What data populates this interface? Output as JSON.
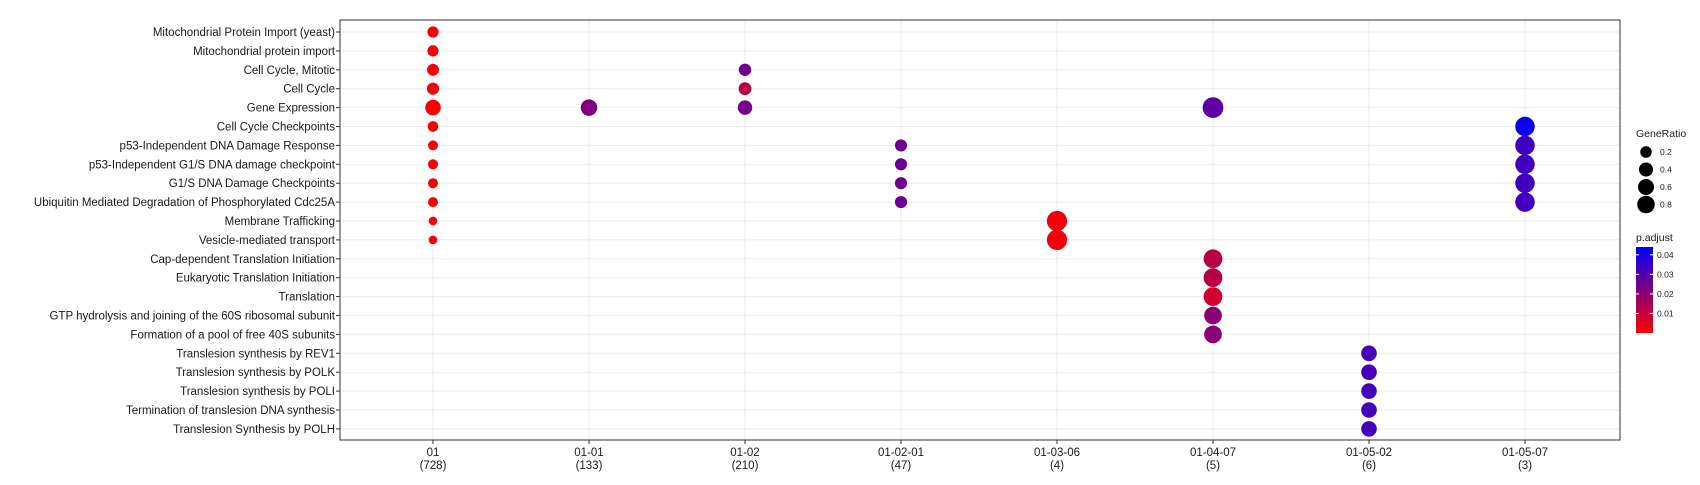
{
  "chart_data": {
    "type": "scatter",
    "clusters": [
      {
        "name": "01",
        "count": "(728)"
      },
      {
        "name": "01-01",
        "count": "(133)"
      },
      {
        "name": "01-02",
        "count": "(210)"
      },
      {
        "name": "01-02-01",
        "count": "(47)"
      },
      {
        "name": "01-03-06",
        "count": "(4)"
      },
      {
        "name": "01-04-07",
        "count": "(5)"
      },
      {
        "name": "01-05-02",
        "count": "(6)"
      },
      {
        "name": "01-05-07",
        "count": "(3)"
      }
    ],
    "terms": [
      "Mitochondrial Protein Import (yeast)",
      "Mitochondrial protein import",
      "Cell Cycle, Mitotic",
      "Cell Cycle",
      "Gene Expression",
      "Cell Cycle Checkpoints",
      "p53-Independent DNA Damage Response",
      "p53-Independent G1/S DNA damage checkpoint",
      "G1/S DNA Damage Checkpoints",
      "Ubiquitin Mediated Degradation of Phosphorylated Cdc25A",
      "Membrane Trafficking",
      "Vesicle-mediated transport",
      "Cap-dependent Translation Initiation",
      "Eukaryotic Translation Initiation",
      "Translation",
      "GTP hydrolysis and joining of the 60S ribosomal subunit",
      "Formation of a pool of free 40S subunits",
      "Translesion synthesis by REV1",
      "Translesion synthesis by POLK",
      "Translesion synthesis by POLI",
      "Termination of translesion DNA synthesis",
      "Translesion Synthesis by POLH"
    ],
    "points": [
      {
        "cluster": "01",
        "term": "Mitochondrial Protein Import (yeast)",
        "gene_ratio": 0.09,
        "p_adjust": 0.001
      },
      {
        "cluster": "01",
        "term": "Mitochondrial protein import",
        "gene_ratio": 0.09,
        "p_adjust": 0.001
      },
      {
        "cluster": "01",
        "term": "Cell Cycle, Mitotic",
        "gene_ratio": 0.12,
        "p_adjust": 0.001
      },
      {
        "cluster": "01",
        "term": "Cell Cycle",
        "gene_ratio": 0.13,
        "p_adjust": 0.001
      },
      {
        "cluster": "01",
        "term": "Gene Expression",
        "gene_ratio": 0.33,
        "p_adjust": 0.001
      },
      {
        "cluster": "01",
        "term": "Cell Cycle Checkpoints",
        "gene_ratio": 0.07,
        "p_adjust": 0.001
      },
      {
        "cluster": "01",
        "term": "p53-Independent DNA Damage Response",
        "gene_ratio": 0.05,
        "p_adjust": 0.001
      },
      {
        "cluster": "01",
        "term": "p53-Independent G1/S DNA damage checkpoint",
        "gene_ratio": 0.05,
        "p_adjust": 0.001
      },
      {
        "cluster": "01",
        "term": "G1/S DNA Damage Checkpoints",
        "gene_ratio": 0.05,
        "p_adjust": 0.001
      },
      {
        "cluster": "01",
        "term": "Ubiquitin Mediated Degradation of Phosphorylated Cdc25A",
        "gene_ratio": 0.05,
        "p_adjust": 0.001
      },
      {
        "cluster": "01",
        "term": "Membrane Trafficking",
        "gene_ratio": 0.02,
        "p_adjust": 0.001
      },
      {
        "cluster": "01",
        "term": "Vesicle-mediated transport",
        "gene_ratio": 0.02,
        "p_adjust": 0.001
      },
      {
        "cluster": "01-01",
        "term": "Gene Expression",
        "gene_ratio": 0.4,
        "p_adjust": 0.022
      },
      {
        "cluster": "01-02",
        "term": "Cell Cycle, Mitotic",
        "gene_ratio": 0.14,
        "p_adjust": 0.025
      },
      {
        "cluster": "01-02",
        "term": "Cell Cycle",
        "gene_ratio": 0.16,
        "p_adjust": 0.012
      },
      {
        "cluster": "01-02",
        "term": "Gene Expression",
        "gene_ratio": 0.25,
        "p_adjust": 0.024
      },
      {
        "cluster": "01-02-01",
        "term": "p53-Independent DNA Damage Response",
        "gene_ratio": 0.13,
        "p_adjust": 0.025
      },
      {
        "cluster": "01-02-01",
        "term": "p53-Independent G1/S DNA damage checkpoint",
        "gene_ratio": 0.13,
        "p_adjust": 0.025
      },
      {
        "cluster": "01-02-01",
        "term": "G1/S DNA Damage Checkpoints",
        "gene_ratio": 0.13,
        "p_adjust": 0.025
      },
      {
        "cluster": "01-02-01",
        "term": "Ubiquitin Mediated Degradation of Phosphorylated Cdc25A",
        "gene_ratio": 0.13,
        "p_adjust": 0.025
      },
      {
        "cluster": "01-03-06",
        "term": "Membrane Trafficking",
        "gene_ratio": 0.75,
        "p_adjust": 0.002
      },
      {
        "cluster": "01-03-06",
        "term": "Vesicle-mediated transport",
        "gene_ratio": 0.75,
        "p_adjust": 0.002
      },
      {
        "cluster": "01-04-07",
        "term": "Gene Expression",
        "gene_ratio": 0.8,
        "p_adjust": 0.028
      },
      {
        "cluster": "01-04-07",
        "term": "Cap-dependent Translation Initiation",
        "gene_ratio": 0.6,
        "p_adjust": 0.012
      },
      {
        "cluster": "01-04-07",
        "term": "Eukaryotic Translation Initiation",
        "gene_ratio": 0.6,
        "p_adjust": 0.012
      },
      {
        "cluster": "01-04-07",
        "term": "Translation",
        "gene_ratio": 0.6,
        "p_adjust": 0.008
      },
      {
        "cluster": "01-04-07",
        "term": "GTP hydrolysis and joining of the 60S ribosomal subunit",
        "gene_ratio": 0.5,
        "p_adjust": 0.02
      },
      {
        "cluster": "01-04-07",
        "term": "Formation of a pool of free 40S subunits",
        "gene_ratio": 0.5,
        "p_adjust": 0.02
      },
      {
        "cluster": "01-05-02",
        "term": "Translesion synthesis by REV1",
        "gene_ratio": 0.33,
        "p_adjust": 0.032
      },
      {
        "cluster": "01-05-02",
        "term": "Translesion synthesis by POLK",
        "gene_ratio": 0.33,
        "p_adjust": 0.032
      },
      {
        "cluster": "01-05-02",
        "term": "Translesion synthesis by POLI",
        "gene_ratio": 0.33,
        "p_adjust": 0.032
      },
      {
        "cluster": "01-05-02",
        "term": "Termination of translesion DNA synthesis",
        "gene_ratio": 0.33,
        "p_adjust": 0.032
      },
      {
        "cluster": "01-05-02",
        "term": "Translesion Synthesis by POLH",
        "gene_ratio": 0.33,
        "p_adjust": 0.032
      },
      {
        "cluster": "01-05-07",
        "term": "Cell Cycle Checkpoints",
        "gene_ratio": 0.67,
        "p_adjust": 0.042
      },
      {
        "cluster": "01-05-07",
        "term": "p53-Independent DNA Damage Response",
        "gene_ratio": 0.67,
        "p_adjust": 0.033
      },
      {
        "cluster": "01-05-07",
        "term": "p53-Independent G1/S DNA damage checkpoint",
        "gene_ratio": 0.67,
        "p_adjust": 0.033
      },
      {
        "cluster": "01-05-07",
        "term": "G1/S DNA Damage Checkpoints",
        "gene_ratio": 0.67,
        "p_adjust": 0.033
      },
      {
        "cluster": "01-05-07",
        "term": "Ubiquitin Mediated Degradation of Phosphorylated Cdc25A",
        "gene_ratio": 0.67,
        "p_adjust": 0.033
      }
    ],
    "size_legend": {
      "title": "GeneRatio",
      "breaks": [
        0.2,
        0.4,
        0.6,
        0.8
      ],
      "labels": [
        "0.2",
        "0.4",
        "0.6",
        "0.8"
      ]
    },
    "color_legend": {
      "title": "p.adjust",
      "range": [
        0.0,
        0.044
      ],
      "breaks": [
        0.01,
        0.02,
        0.03,
        0.04
      ],
      "labels": [
        "0.01",
        "0.02",
        "0.03",
        "0.04"
      ],
      "low_color": "#ff0000",
      "high_color": "#0000ff"
    },
    "grid": true,
    "legend_position": "right"
  }
}
